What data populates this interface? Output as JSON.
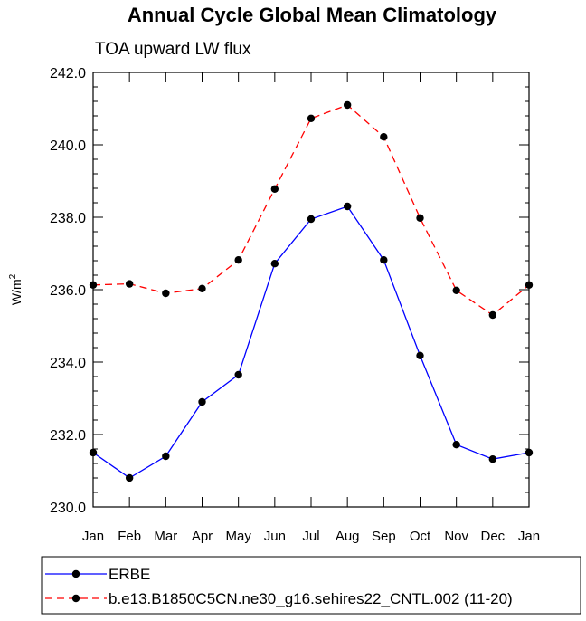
{
  "chart_data": {
    "type": "line",
    "title": "Annual Cycle Global Mean Climatology",
    "subtitle": "TOA upward LW flux",
    "ylabel_base": "W/m",
    "ylabel_sup": "2",
    "xlabel": "",
    "categories": [
      "Jan",
      "Feb",
      "Mar",
      "Apr",
      "May",
      "Jun",
      "Jul",
      "Aug",
      "Sep",
      "Oct",
      "Nov",
      "Dec",
      "Jan"
    ],
    "ylim": [
      230.0,
      242.0
    ],
    "yticks": [
      "230.0",
      "232.0",
      "234.0",
      "236.0",
      "238.0",
      "240.0",
      "242.0"
    ],
    "series": [
      {
        "name": "ERBE",
        "color": "#0000ff",
        "dash": "solid",
        "values": [
          231.5,
          230.8,
          231.4,
          232.9,
          233.65,
          236.72,
          237.95,
          238.3,
          236.82,
          234.18,
          231.72,
          231.32,
          231.5
        ]
      },
      {
        "name": "b.e13.B1850C5CN.ne30_g16.sehires22_CNTL.002 (11-20)",
        "color": "#ff0000",
        "dash": "dashed",
        "values": [
          236.13,
          236.16,
          235.9,
          236.03,
          236.82,
          238.78,
          240.73,
          241.1,
          240.22,
          237.98,
          235.98,
          235.3,
          236.13
        ]
      }
    ]
  }
}
